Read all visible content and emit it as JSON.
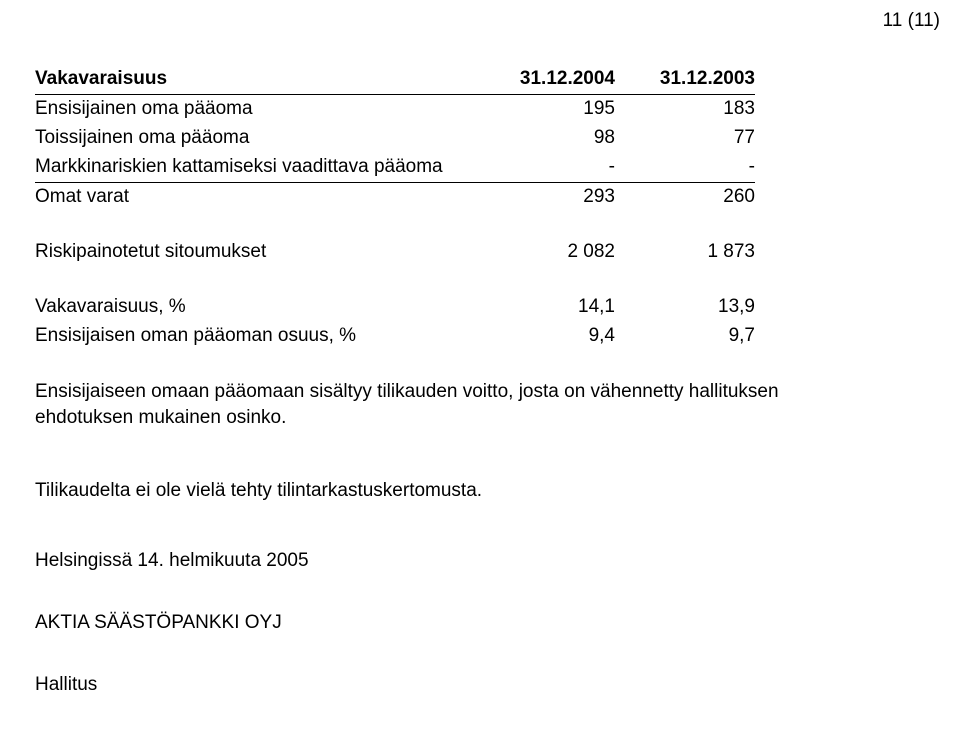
{
  "page_number": "11 (11)",
  "table": {
    "title": "Vakavaraisuus",
    "col1": "31.12.2004",
    "col2": "31.12.2003",
    "rows": [
      {
        "label": "Ensisijainen oma pääoma",
        "v1": "195",
        "v2": "183"
      },
      {
        "label": "Toissijainen oma pääoma",
        "v1": "98",
        "v2": "77"
      },
      {
        "label": "Markkinariskien kattamiseksi vaadittava pääoma",
        "v1": "-",
        "v2": "-"
      }
    ],
    "sum": {
      "label": "Omat varat",
      "v1": "293",
      "v2": "260"
    },
    "risk": {
      "label": "Riskipainotetut sitoumukset",
      "v1": "2 082",
      "v2": "1 873"
    },
    "ratios": [
      {
        "label": "Vakavaraisuus, %",
        "v1": "14,1",
        "v2": "13,9"
      },
      {
        "label": "Ensisijaisen oman pääoman osuus, %",
        "v1": "9,4",
        "v2": "9,7"
      }
    ]
  },
  "note": "Ensisijaiseen omaan pääomaan sisältyy tilikauden voitto, josta on vähennetty hallituksen ehdotuksen mukainen osinko.",
  "audit_note": "Tilikaudelta ei ole vielä tehty tilintarkastuskertomusta.",
  "sig_place_date": "Helsingissä 14. helmikuuta 2005",
  "company": "AKTIA SÄÄSTÖPANKKI OYJ",
  "board": "Hallitus"
}
